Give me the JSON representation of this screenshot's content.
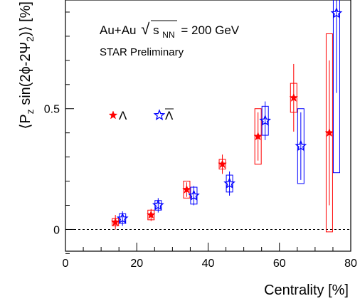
{
  "chart_data": {
    "type": "scatter",
    "annotations": {
      "line1_prefix": "Au+Au",
      "sqrt_symbol": "√",
      "s_letter": "s",
      "s_subscript": "NN",
      "line1_suffix": "= 200 GeV",
      "line2": "STAR Preliminary"
    },
    "xlabel": "Centrality [%]",
    "ylabel_parts": {
      "open": "⟨P",
      "sub1": "z",
      "mid": " sin(2ϕ-2Ψ",
      "sub2": "2",
      "close": ")⟩ [%]"
    },
    "xlim": [
      0,
      80
    ],
    "ylim": [
      -0.09,
      0.95
    ],
    "x_ticks": [
      0,
      20,
      40,
      60,
      80
    ],
    "x_tick_labels": [
      "0",
      "20",
      "40",
      "60",
      "80"
    ],
    "y_ticks": [
      0,
      0.5
    ],
    "y_tick_labels": [
      "0",
      "0.5"
    ],
    "zero_line": true,
    "grid": false,
    "legend_placement": "middle-left",
    "series": [
      {
        "name": "Λ",
        "color": "#ff0000",
        "marker": "filled-star",
        "points": [
          {
            "x": 14,
            "y": 0.03,
            "stat": 0.03,
            "sys": 0.015
          },
          {
            "x": 24,
            "y": 0.06,
            "stat": 0.025,
            "sys": 0.02
          },
          {
            "x": 34,
            "y": 0.165,
            "stat": 0.03,
            "sys": 0.035
          },
          {
            "x": 44,
            "y": 0.27,
            "stat": 0.04,
            "sys": 0.02
          },
          {
            "x": 54,
            "y": 0.385,
            "stat": 0.1,
            "sys": 0.115
          },
          {
            "x": 64,
            "y": 0.545,
            "stat": 0.14,
            "sys": 0.06
          },
          {
            "x": 74,
            "y": 0.4,
            "stat": 0.3,
            "sys": 0.41
          }
        ]
      },
      {
        "name": "Λ̄",
        "legend_base": "Λ",
        "color": "#0000ff",
        "marker": "open-star",
        "points": [
          {
            "x": 16,
            "y": 0.045,
            "stat": 0.03,
            "sys": 0.02
          },
          {
            "x": 26,
            "y": 0.1,
            "stat": 0.03,
            "sys": 0.02
          },
          {
            "x": 36,
            "y": 0.14,
            "stat": 0.04,
            "sys": 0.035
          },
          {
            "x": 46,
            "y": 0.19,
            "stat": 0.05,
            "sys": 0.035
          },
          {
            "x": 56,
            "y": 0.45,
            "stat": 0.08,
            "sys": 0.06
          },
          {
            "x": 66,
            "y": 0.345,
            "stat": 0.14,
            "sys": 0.155
          },
          {
            "x": 76,
            "y": 0.895,
            "stat": 0.33,
            "sys": 0.66
          }
        ]
      }
    ]
  }
}
